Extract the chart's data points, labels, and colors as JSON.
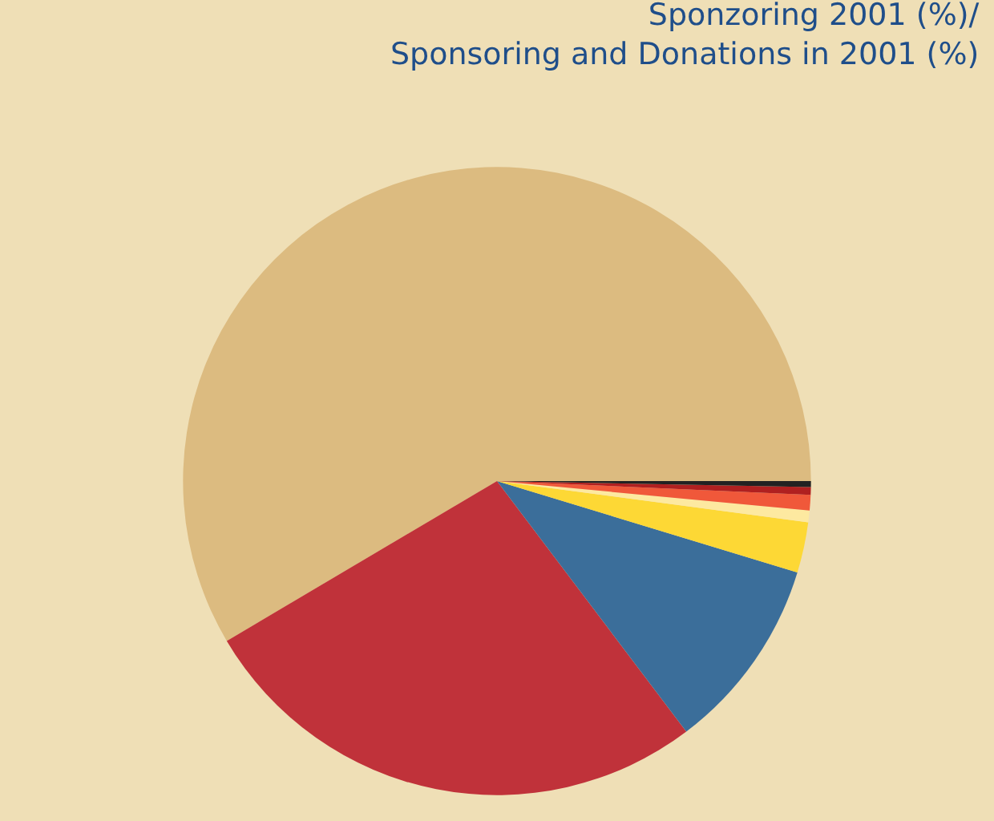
{
  "chart_data": {
    "type": "pie",
    "title": "Sponzoring 2001 (%)/\nSponsoring and Donations in 2001 (%)",
    "categories": [
      null,
      null,
      null,
      null,
      null,
      null,
      null,
      null
    ],
    "values": [
      58.5,
      26.8,
      10,
      2.6,
      0.6,
      0.8,
      0.4,
      0.3
    ],
    "colors": [
      "#dcbb80",
      "#c0323a",
      "#3b6e9a",
      "#fdd835",
      "#fde9a0",
      "#f0583a",
      "#b02020",
      "#222222"
    ],
    "legend": false
  }
}
